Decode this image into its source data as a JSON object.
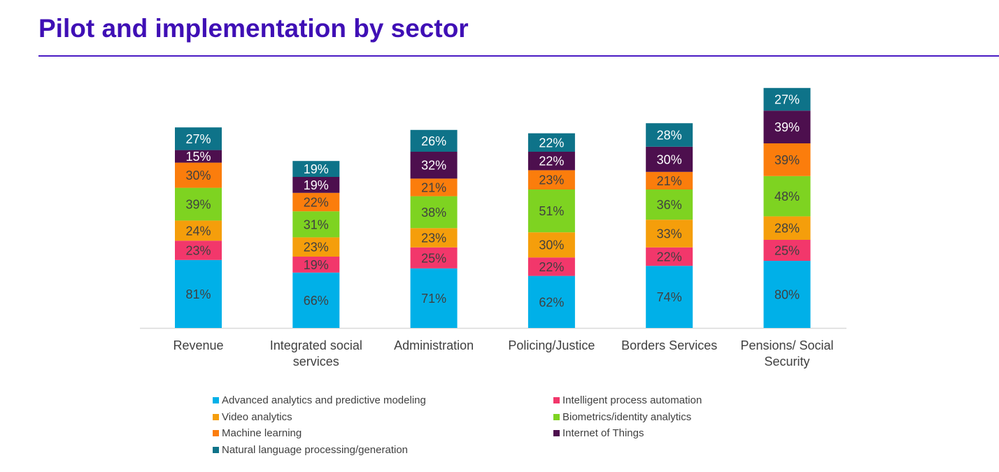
{
  "title": "Pilot and implementation by sector",
  "colors": {
    "title": "#3f0fb5",
    "series": [
      "#00b0e8",
      "#f2376b",
      "#f59e0b",
      "#7ed321",
      "#fb7d0c",
      "#4d0f4e",
      "#0e7389"
    ]
  },
  "chart_data": {
    "type": "bar",
    "stacked": true,
    "categories": [
      "Revenue",
      "Integrated social services",
      "Administration",
      "Policing/Justice",
      "Borders Services",
      "Pensions/ Social Security"
    ],
    "category_lines": [
      [
        "Revenue"
      ],
      [
        "Integrated social",
        "services"
      ],
      [
        "Administration"
      ],
      [
        "Policing/Justice"
      ],
      [
        "Borders Services"
      ],
      [
        "Pensions/ Social",
        "Security"
      ]
    ],
    "series": [
      {
        "name": "Advanced analytics and predictive modeling",
        "values": [
          81,
          66,
          71,
          62,
          74,
          80
        ]
      },
      {
        "name": "Intelligent process automation",
        "values": [
          23,
          19,
          25,
          22,
          22,
          25
        ]
      },
      {
        "name": "Video analytics",
        "values": [
          24,
          23,
          23,
          30,
          33,
          28
        ]
      },
      {
        "name": "Biometrics/identity analytics",
        "values": [
          39,
          31,
          38,
          51,
          36,
          48
        ]
      },
      {
        "name": "Machine learning",
        "values": [
          30,
          22,
          21,
          23,
          21,
          39
        ]
      },
      {
        "name": "Internet of Things",
        "values": [
          15,
          19,
          32,
          22,
          30,
          39
        ]
      },
      {
        "name": "Natural language processing/generation",
        "values": [
          27,
          19,
          26,
          22,
          28,
          27
        ]
      }
    ],
    "value_suffix": "%",
    "grid": false,
    "legend_position": "bottom"
  }
}
